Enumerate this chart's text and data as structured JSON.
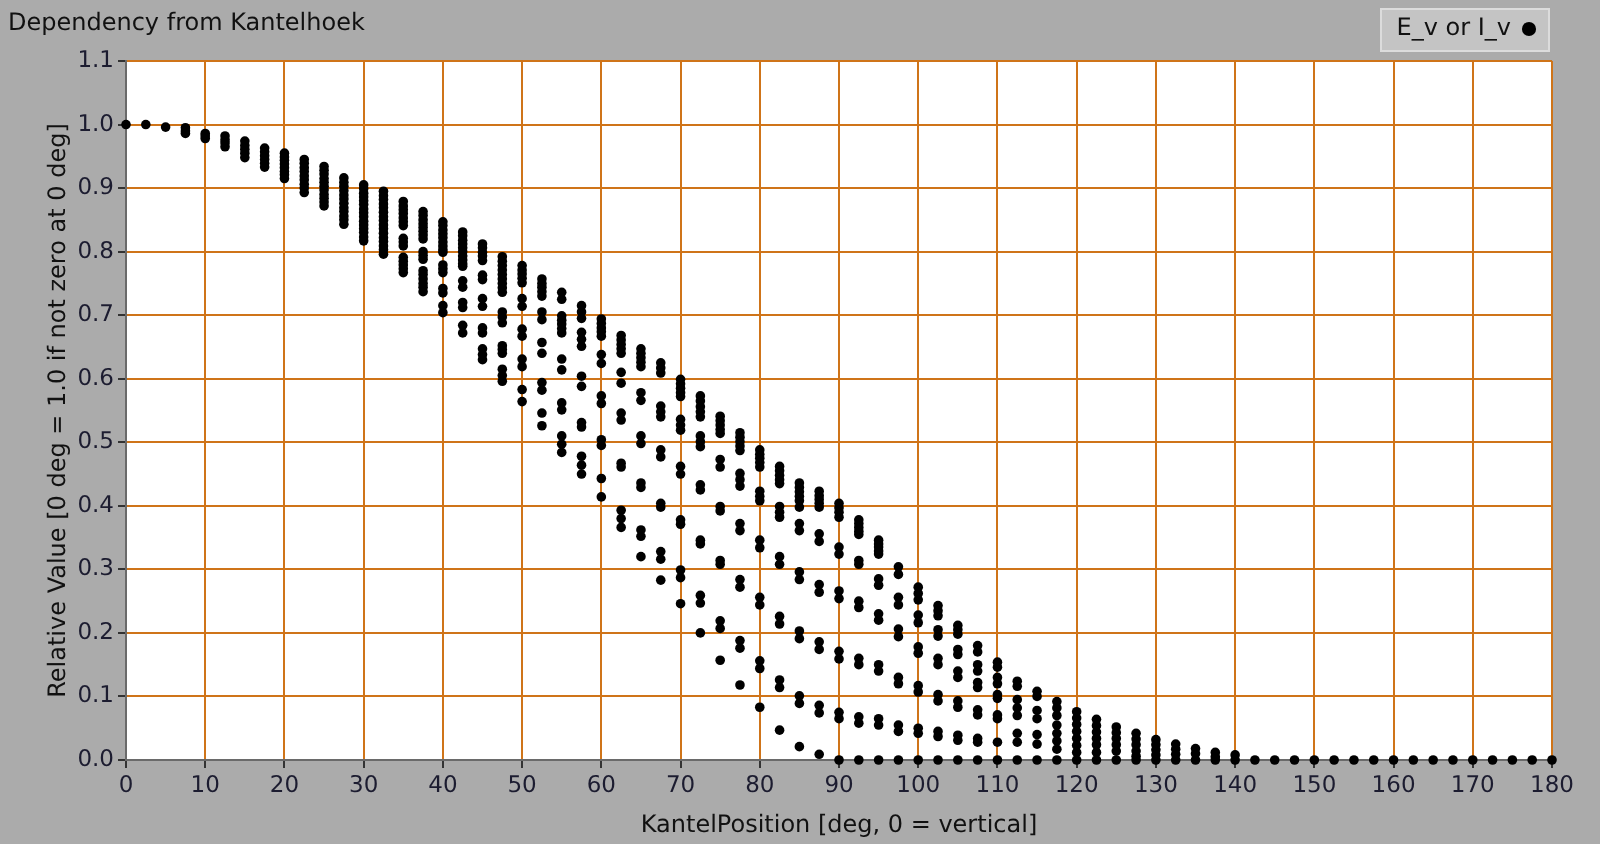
{
  "chart_data": {
    "type": "scatter",
    "title": "Dependency from Kantelhoek",
    "xlabel": "KantelPosition [deg, 0 = vertical]",
    "ylabel": "Relative Value [0 deg = 1.0 if not zero at 0 deg]",
    "series": [
      {
        "name": "E_v or I_v",
        "color": "#000000",
        "x": [
          0,
          2.5,
          5,
          7.5,
          7.5,
          7.5,
          10,
          10,
          10,
          12.5,
          12.5,
          12.5,
          12.5,
          15,
          15,
          15,
          15,
          15,
          17.5,
          17.5,
          17.5,
          17.5,
          17.5,
          17.5,
          20,
          20,
          20,
          20,
          20,
          20,
          20,
          20,
          22.5,
          22.5,
          22.5,
          22.5,
          22.5,
          22.5,
          22.5,
          22.5,
          22.5,
          25,
          25,
          25,
          25,
          25,
          25,
          25,
          25,
          25,
          25,
          25,
          27.5,
          27.5,
          27.5,
          27.5,
          27.5,
          27.5,
          27.5,
          27.5,
          27.5,
          27.5,
          27.5,
          27.5,
          30,
          30,
          30,
          30,
          30,
          30,
          30,
          30,
          30,
          30,
          30,
          30,
          30,
          30,
          30,
          32.5,
          32.5,
          32.5,
          32.5,
          32.5,
          32.5,
          32.5,
          32.5,
          32.5,
          32.5,
          32.5,
          32.5,
          32.5,
          32.5,
          32.5,
          32.5,
          35,
          35,
          35,
          35,
          35,
          35,
          35,
          35,
          35,
          35,
          35,
          35,
          35,
          35,
          35,
          37.5,
          37.5,
          37.5,
          37.5,
          37.5,
          37.5,
          37.5,
          37.5,
          37.5,
          37.5,
          37.5,
          37.5,
          37.5,
          37.5,
          37.5,
          37.5,
          37.5,
          40,
          40,
          40,
          40,
          40,
          40,
          40,
          40,
          40,
          40,
          40,
          40,
          40,
          40,
          40,
          40,
          42.5,
          42.5,
          42.5,
          42.5,
          42.5,
          42.5,
          42.5,
          42.5,
          42.5,
          42.5,
          42.5,
          42.5,
          42.5,
          42.5,
          42.5,
          42.5,
          45,
          45,
          45,
          45,
          45,
          45,
          45,
          45,
          45,
          45,
          45,
          45,
          45,
          45,
          47.5,
          47.5,
          47.5,
          47.5,
          47.5,
          47.5,
          47.5,
          47.5,
          47.5,
          47.5,
          47.5,
          47.5,
          47.5,
          47.5,
          47.5,
          47.5,
          47.5,
          47.5,
          50,
          50,
          50,
          50,
          50,
          50,
          50,
          50,
          50,
          50,
          50,
          52.5,
          52.5,
          52.5,
          52.5,
          52.5,
          52.5,
          52.5,
          52.5,
          52.5,
          52.5,
          52.5,
          55,
          55,
          55,
          55,
          55,
          55,
          55,
          55,
          55,
          55,
          55,
          55,
          57.5,
          57.5,
          57.5,
          57.5,
          57.5,
          57.5,
          57.5,
          57.5,
          57.5,
          57.5,
          57.5,
          60,
          60,
          60,
          60,
          60,
          60,
          60,
          60,
          60,
          60,
          60,
          62.5,
          62.5,
          62.5,
          62.5,
          62.5,
          62.5,
          62.5,
          62.5,
          62.5,
          62.5,
          62.5,
          62.5,
          65,
          65,
          65,
          65,
          65,
          65,
          65,
          65,
          65,
          65,
          65,
          65,
          67.5,
          67.5,
          67.5,
          67.5,
          67.5,
          67.5,
          67.5,
          67.5,
          67.5,
          67.5,
          67.5,
          70,
          70,
          70,
          70,
          70,
          70,
          70,
          70,
          70,
          70,
          70,
          70,
          72.5,
          72.5,
          72.5,
          72.5,
          72.5,
          72.5,
          72.5,
          72.5,
          72.5,
          72.5,
          72.5,
          72.5,
          75,
          75,
          75,
          75,
          75,
          75,
          75,
          75,
          75,
          75,
          75,
          75,
          77.5,
          77.5,
          77.5,
          77.5,
          77.5,
          77.5,
          77.5,
          77.5,
          77.5,
          77.5,
          77.5,
          77.5,
          80,
          80,
          80,
          80,
          80,
          80,
          80,
          80,
          80,
          80,
          80,
          80,
          82.5,
          82.5,
          82.5,
          82.5,
          82.5,
          82.5,
          82.5,
          82.5,
          82.5,
          82.5,
          82.5,
          82.5,
          85,
          85,
          85,
          85,
          85,
          85,
          85,
          85,
          85,
          85,
          85,
          85,
          85,
          87.5,
          87.5,
          87.5,
          87.5,
          87.5,
          87.5,
          87.5,
          87.5,
          87.5,
          87.5,
          87.5,
          87.5,
          90,
          90,
          90,
          90,
          90,
          90,
          90,
          90,
          90,
          90,
          90,
          90,
          92.5,
          92.5,
          92.5,
          92.5,
          92.5,
          92.5,
          92.5,
          92.5,
          92.5,
          92.5,
          92.5,
          92.5,
          95,
          95,
          95,
          95,
          95,
          95,
          95,
          95,
          95,
          95,
          95,
          95,
          97.5,
          97.5,
          97.5,
          97.5,
          97.5,
          97.5,
          97.5,
          97.5,
          97.5,
          97.5,
          97.5,
          100,
          100,
          100,
          100,
          100,
          100,
          100,
          100,
          100,
          100,
          100,
          100,
          102.5,
          102.5,
          102.5,
          102.5,
          102.5,
          102.5,
          102.5,
          102.5,
          102.5,
          102.5,
          102.5,
          102.5,
          105,
          105,
          105,
          105,
          105,
          105,
          105,
          105,
          105,
          105,
          105,
          105,
          107.5,
          107.5,
          107.5,
          107.5,
          107.5,
          107.5,
          107.5,
          107.5,
          107.5,
          107.5,
          107.5,
          110,
          110,
          110,
          110,
          110,
          110,
          110,
          110,
          110,
          110,
          112.5,
          112.5,
          112.5,
          112.5,
          112.5,
          112.5,
          112.5,
          112.5,
          115,
          115,
          115,
          115,
          115,
          115,
          115,
          117.5,
          117.5,
          117.5,
          117.5,
          117.5,
          117.5,
          117.5,
          117.5,
          120,
          120,
          120,
          120,
          120,
          120,
          120,
          120,
          122.5,
          122.5,
          122.5,
          122.5,
          122.5,
          122.5,
          122.5,
          125,
          125,
          125,
          125,
          125,
          125,
          127.5,
          127.5,
          127.5,
          127.5,
          127.5,
          127.5,
          130,
          130,
          130,
          130,
          130,
          132.5,
          132.5,
          132.5,
          132.5,
          135,
          135,
          135,
          137.5,
          137.5,
          137.5,
          140,
          140,
          142.5,
          145,
          147.5,
          150,
          152.5,
          155,
          157.5,
          160,
          162.5,
          165,
          167.5,
          170,
          172.5,
          175,
          177.5,
          180,
          50,
          50,
          52.5,
          52.5,
          55,
          55,
          57.5,
          57.5,
          60,
          60,
          62.5,
          62.5,
          65,
          65,
          67.5,
          67.5,
          70,
          70,
          70,
          72.5,
          72.5,
          72.5,
          75,
          75,
          77.5,
          77.5,
          77.5,
          80,
          80,
          80,
          82.5,
          82.5,
          82.5,
          85,
          85,
          87.5,
          87.5,
          90,
          92.5,
          92.5,
          95,
          95
        ],
        "values": [
          1.0,
          1.0,
          0.996,
          0.995,
          0.99,
          0.986,
          0.986,
          0.982,
          0.978,
          0.982,
          0.976,
          0.971,
          0.965,
          0.974,
          0.967,
          0.961,
          0.955,
          0.948,
          0.963,
          0.957,
          0.951,
          0.945,
          0.939,
          0.933,
          0.955,
          0.949,
          0.944,
          0.938,
          0.932,
          0.926,
          0.921,
          0.915,
          0.945,
          0.939,
          0.932,
          0.926,
          0.919,
          0.913,
          0.906,
          0.9,
          0.893,
          0.934,
          0.928,
          0.922,
          0.915,
          0.909,
          0.903,
          0.897,
          0.89,
          0.884,
          0.878,
          0.872,
          0.916,
          0.909,
          0.903,
          0.896,
          0.889,
          0.883,
          0.876,
          0.869,
          0.863,
          0.856,
          0.85,
          0.843,
          0.905,
          0.899,
          0.892,
          0.886,
          0.88,
          0.874,
          0.867,
          0.861,
          0.855,
          0.848,
          0.842,
          0.836,
          0.83,
          0.823,
          0.817,
          0.895,
          0.888,
          0.882,
          0.875,
          0.869,
          0.862,
          0.855,
          0.849,
          0.842,
          0.836,
          0.829,
          0.822,
          0.816,
          0.809,
          0.803,
          0.796,
          0.879,
          0.872,
          0.866,
          0.86,
          0.853,
          0.847,
          0.841,
          0.821,
          0.815,
          0.809,
          0.791,
          0.785,
          0.779,
          0.773,
          0.767,
          0.863,
          0.857,
          0.85,
          0.844,
          0.838,
          0.832,
          0.826,
          0.82,
          0.8,
          0.794,
          0.788,
          0.77,
          0.764,
          0.757,
          0.75,
          0.744,
          0.737,
          0.847,
          0.841,
          0.834,
          0.828,
          0.822,
          0.815,
          0.809,
          0.803,
          0.799,
          0.779,
          0.773,
          0.767,
          0.742,
          0.735,
          0.715,
          0.704,
          0.831,
          0.825,
          0.818,
          0.812,
          0.806,
          0.8,
          0.793,
          0.787,
          0.781,
          0.777,
          0.754,
          0.744,
          0.72,
          0.712,
          0.684,
          0.672,
          0.812,
          0.806,
          0.799,
          0.793,
          0.786,
          0.763,
          0.756,
          0.726,
          0.714,
          0.68,
          0.672,
          0.647,
          0.638,
          0.63,
          0.792,
          0.785,
          0.778,
          0.771,
          0.764,
          0.757,
          0.75,
          0.743,
          0.736,
          0.705,
          0.697,
          0.688,
          0.652,
          0.646,
          0.64,
          0.615,
          0.605,
          0.596,
          0.778,
          0.765,
          0.751,
          0.726,
          0.714,
          0.678,
          0.667,
          0.631,
          0.619,
          0.583,
          0.564,
          0.757,
          0.744,
          0.73,
          0.705,
          0.693,
          0.657,
          0.64,
          0.594,
          0.582,
          0.546,
          0.526,
          0.736,
          0.725,
          0.699,
          0.686,
          0.672,
          0.631,
          0.614,
          0.562,
          0.551,
          0.51,
          0.497,
          0.484,
          0.715,
          0.695,
          0.673,
          0.651,
          0.604,
          0.588,
          0.531,
          0.524,
          0.478,
          0.464,
          0.45,
          0.694,
          0.68,
          0.667,
          0.638,
          0.624,
          0.573,
          0.561,
          0.504,
          0.495,
          0.443,
          0.414,
          0.668,
          0.654,
          0.64,
          0.61,
          0.593,
          0.546,
          0.535,
          0.467,
          0.461,
          0.393,
          0.38,
          0.366,
          0.647,
          0.633,
          0.619,
          0.578,
          0.566,
          0.51,
          0.498,
          0.436,
          0.429,
          0.362,
          0.352,
          0.32,
          0.625,
          0.609,
          0.557,
          0.54,
          0.488,
          0.477,
          0.404,
          0.398,
          0.328,
          0.316,
          0.283,
          0.599,
          0.585,
          0.572,
          0.536,
          0.519,
          0.462,
          0.45,
          0.378,
          0.371,
          0.299,
          0.287,
          0.246,
          0.573,
          0.556,
          0.54,
          0.51,
          0.493,
          0.433,
          0.425,
          0.346,
          0.34,
          0.259,
          0.247,
          0.2,
          0.541,
          0.527,
          0.514,
          0.473,
          0.461,
          0.399,
          0.392,
          0.314,
          0.308,
          0.219,
          0.207,
          0.157,
          0.515,
          0.501,
          0.487,
          0.451,
          0.431,
          0.372,
          0.361,
          0.284,
          0.272,
          0.188,
          0.176,
          0.118,
          0.488,
          0.475,
          0.461,
          0.423,
          0.408,
          0.346,
          0.334,
          0.256,
          0.244,
          0.156,
          0.144,
          0.083,
          0.462,
          0.448,
          0.435,
          0.399,
          0.382,
          0.32,
          0.308,
          0.226,
          0.214,
          0.126,
          0.114,
          0.047,
          0.436,
          0.422,
          0.408,
          0.398,
          0.372,
          0.361,
          0.296,
          0.284,
          0.203,
          0.191,
          0.101,
          0.089,
          0.021,
          0.423,
          0.41,
          0.398,
          0.356,
          0.344,
          0.276,
          0.264,
          0.186,
          0.174,
          0.086,
          0.074,
          0.009,
          0.404,
          0.39,
          0.382,
          0.335,
          0.324,
          0.266,
          0.254,
          0.171,
          0.159,
          0.075,
          0.065,
          0,
          0.378,
          0.366,
          0.355,
          0.314,
          0.308,
          0.25,
          0.24,
          0.16,
          0.15,
          0.068,
          0.058,
          0,
          0.346,
          0.335,
          0.324,
          0.285,
          0.275,
          0.23,
          0.22,
          0.15,
          0.14,
          0.065,
          0.055,
          0,
          0.304,
          0.292,
          0.256,
          0.244,
          0.206,
          0.194,
          0.13,
          0.12,
          0.055,
          0.045,
          0,
          0.272,
          0.262,
          0.252,
          0.228,
          0.216,
          0.178,
          0.168,
          0.117,
          0.107,
          0.05,
          0.042,
          0,
          0.243,
          0.235,
          0.227,
          0.205,
          0.195,
          0.16,
          0.15,
          0.103,
          0.093,
          0.045,
          0.037,
          0,
          0.212,
          0.205,
          0.198,
          0.174,
          0.166,
          0.14,
          0.13,
          0.093,
          0.083,
          0.039,
          0.031,
          0,
          0.18,
          0.17,
          0.15,
          0.14,
          0.122,
          0.114,
          0.079,
          0.071,
          0.034,
          0.028,
          0,
          0.154,
          0.146,
          0.13,
          0.12,
          0.103,
          0.097,
          0.071,
          0.065,
          0.028,
          0,
          0.124,
          0.116,
          0.095,
          0.082,
          0.07,
          0.042,
          0.028,
          0,
          0.108,
          0.1,
          0.078,
          0.065,
          0.04,
          0.025,
          0,
          0.092,
          0.082,
          0.07,
          0.055,
          0.042,
          0.03,
          0.017,
          0,
          0.076,
          0.066,
          0.056,
          0.045,
          0.034,
          0.023,
          0.012,
          0,
          0.064,
          0.054,
          0.044,
          0.034,
          0.024,
          0.012,
          0,
          0.052,
          0.043,
          0.034,
          0.024,
          0.014,
          0,
          0.042,
          0.033,
          0.024,
          0.014,
          0.006,
          0,
          0.032,
          0.024,
          0.016,
          0.008,
          0,
          0.025,
          0.017,
          0.009,
          0,
          0.018,
          0.01,
          0,
          0.012,
          0.005,
          0,
          0.008,
          0,
          0,
          0,
          0,
          0,
          0,
          0,
          0,
          0,
          0,
          0,
          0,
          0,
          0,
          0,
          0,
          0,
          0.771,
          0.758,
          0.75,
          0.737,
          0.692,
          0.679,
          0.705,
          0.662,
          0.687,
          0.674,
          0.661,
          0.647,
          0.64,
          0.626,
          0.617,
          0.548,
          0.592,
          0.578,
          0.527,
          0.565,
          0.548,
          0.501,
          0.534,
          0.52,
          0.508,
          0.494,
          0.441,
          0.481,
          0.468,
          0.415,
          0.455,
          0.441,
          0.39,
          0.429,
          0.415,
          0.416,
          0.404,
          0.397,
          0.372,
          0.36,
          0.34,
          0.329
        ]
      }
    ],
    "xlim": [
      0,
      180
    ],
    "xticks": [
      0,
      10,
      20,
      30,
      40,
      50,
      60,
      70,
      80,
      90,
      100,
      110,
      120,
      130,
      140,
      150,
      160,
      170,
      180
    ],
    "ylim": [
      0,
      1.1
    ],
    "yticks": [
      {
        "value": 0,
        "label": "0.0"
      },
      0.1,
      0.2,
      0.3,
      0.4,
      0.5,
      0.6,
      0.7,
      0.8,
      0.9,
      {
        "value": 1,
        "label": "1.0"
      },
      1.1
    ],
    "grid": true,
    "legend": "top right",
    "marker": "circle"
  }
}
